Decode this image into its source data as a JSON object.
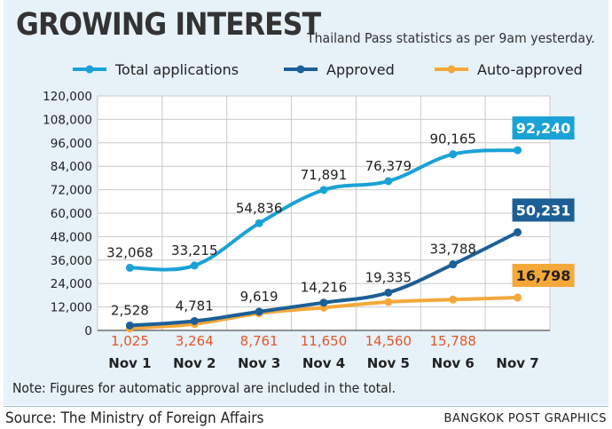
{
  "header": {
    "title": "GROWING INTEREST",
    "subtitle": "Thailand Pass statistics as per 9am yesterday."
  },
  "footer": {
    "note": "Note: Figures for automatic approval are included in the total.",
    "source": "Source: The Ministry of Foreign Affairs",
    "credit": "BANGKOK POST GRAPHICS"
  },
  "colors": {
    "background": "#e6f1f8",
    "total": "#1aa2d6",
    "approved": "#1c5f96",
    "auto": "#f4a83a",
    "auto_label": "#e0572a"
  },
  "chart_data": {
    "type": "line",
    "categories": [
      "Nov 1",
      "Nov 2",
      "Nov 3",
      "Nov 4",
      "Nov 5",
      "Nov 6",
      "Nov 7"
    ],
    "ylim": [
      0,
      120000
    ],
    "yticks": [
      "0",
      "12,000",
      "24,000",
      "36,000",
      "48,000",
      "60,000",
      "72,000",
      "84,000",
      "96,000",
      "108,000",
      "120,000"
    ],
    "grid": true,
    "legend_position": "top",
    "series": [
      {
        "name": "Total applications",
        "color": "#1aa2d6",
        "values": [
          32068,
          33215,
          54836,
          71891,
          76379,
          90165,
          92240
        ],
        "labels": [
          "32,068",
          "33,215",
          "54,836",
          "71,891",
          "76,379",
          "90,165",
          "92,240"
        ],
        "label_text_color": "#222222",
        "last_label_box_color": "#1aa2d6"
      },
      {
        "name": "Approved",
        "color": "#1c5f96",
        "values": [
          2528,
          4781,
          9619,
          14216,
          19335,
          33788,
          50231
        ],
        "labels": [
          "2,528",
          "4,781",
          "9,619",
          "14,216",
          "19,335",
          "33,788",
          "50,231"
        ],
        "label_text_color": "#222222",
        "last_label_box_color": "#1c5f96"
      },
      {
        "name": "Auto-approved",
        "color": "#f4a83a",
        "values": [
          1025,
          3264,
          8761,
          11650,
          14560,
          15788,
          16798
        ],
        "labels": [
          "1,025",
          "3,264",
          "8,761",
          "11,650",
          "14,560",
          "15,788",
          "16,798"
        ],
        "label_text_color": "#e0572a",
        "last_label_box_color": "#f4a83a"
      }
    ]
  }
}
